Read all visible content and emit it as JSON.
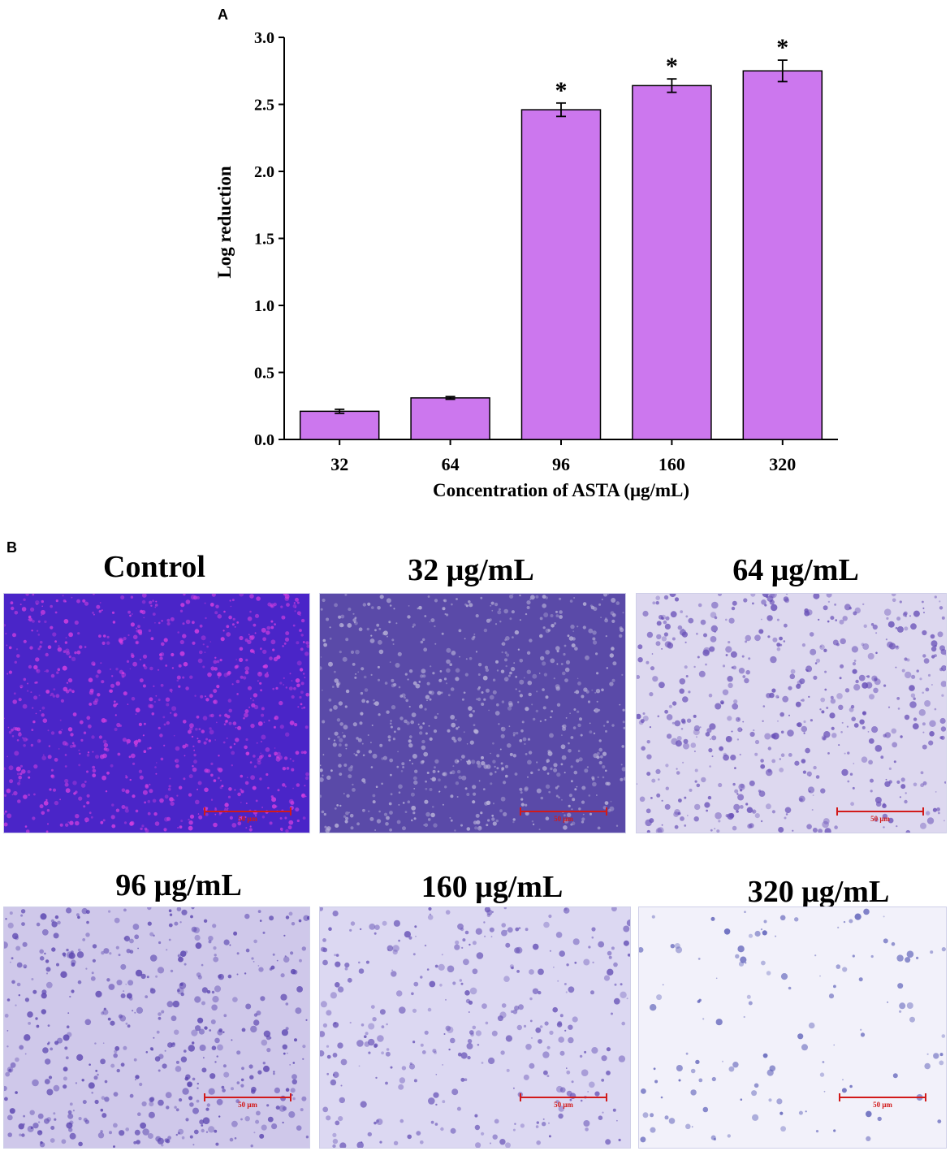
{
  "panel_a_label": "A",
  "panel_b_label": "B",
  "chart_data": {
    "type": "bar",
    "xlabel": "Concentration of ASTA (μg/mL)",
    "ylabel": "Log reduction",
    "categories": [
      "32",
      "64",
      "96",
      "160",
      "320"
    ],
    "values": [
      0.21,
      0.31,
      2.46,
      2.64,
      2.75
    ],
    "errors": [
      0.015,
      0.01,
      0.05,
      0.05,
      0.08
    ],
    "significance": [
      "",
      "",
      "*",
      "*",
      "*"
    ],
    "ylim": [
      0,
      3.0
    ],
    "yticks": [
      "0.0",
      "0.5",
      "1.0",
      "1.5",
      "2.0",
      "2.5",
      "3.0"
    ],
    "grid": false,
    "bar_color": "#cc77ee"
  },
  "micrographs": [
    {
      "title": "Control",
      "scale": "50 μm",
      "base": "#4a25c8",
      "spot": "#d43fe0",
      "density": 0.9
    },
    {
      "title": "32 μg/mL",
      "scale": "50 μm",
      "base": "#5a4aa8",
      "spot": "#b8b2d8",
      "density": 0.8
    },
    {
      "title": "64 μg/mL",
      "scale": "50 μm",
      "base": "#ddd8ef",
      "spot": "#6a52b8",
      "density": 0.55
    },
    {
      "title": "96 μg/mL",
      "scale": "50 μm",
      "base": "#cfc8ea",
      "spot": "#5b46b0",
      "density": 0.5
    },
    {
      "title": "160 μg/mL",
      "scale": "50 μm",
      "base": "#dcd8f2",
      "spot": "#6a56b8",
      "density": 0.32
    },
    {
      "title": "320 μg/mL",
      "scale": "50 μm",
      "base": "#f2f1fa",
      "spot": "#5d5fb8",
      "density": 0.08
    }
  ]
}
